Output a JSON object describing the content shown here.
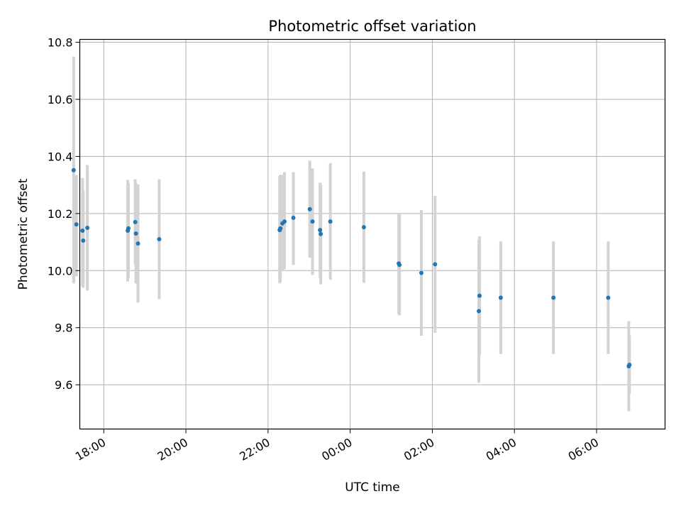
{
  "chart_data": {
    "type": "scatter",
    "title": "Photometric offset variation",
    "xlabel": "UTC time",
    "ylabel": "Photometric offset",
    "x_axis": "time (UTC, hours from 00:00; negative = previous evening)",
    "xlim": [
      "17:25",
      "07:40"
    ],
    "ylim": [
      9.445,
      10.81
    ],
    "x_ticks": [
      "18:00",
      "20:00",
      "22:00",
      "00:00",
      "02:00",
      "04:00",
      "06:00"
    ],
    "y_ticks": [
      "9.6",
      "9.8",
      "10.0",
      "10.2",
      "10.4",
      "10.6",
      "10.8"
    ],
    "grid": true,
    "colors": {
      "point": "#1f77b4",
      "errorbar": "#d3d3d3",
      "grid": "#b0b0b0"
    },
    "points": [
      {
        "t": "17:16",
        "y": 10.352,
        "lo": 9.955,
        "hi": 10.75
      },
      {
        "t": "17:20",
        "y": 10.162,
        "lo": 9.98,
        "hi": 10.335
      },
      {
        "t": "17:29",
        "y": 10.14,
        "lo": 9.945,
        "hi": 10.325
      },
      {
        "t": "17:30",
        "y": 10.105,
        "lo": 9.94,
        "hi": 10.28
      },
      {
        "t": "17:36",
        "y": 10.15,
        "lo": 9.93,
        "hi": 10.37
      },
      {
        "t": "18:35",
        "y": 10.14,
        "lo": 9.962,
        "hi": 10.318
      },
      {
        "t": "18:36",
        "y": 10.148,
        "lo": 9.975,
        "hi": 10.305
      },
      {
        "t": "18:46",
        "y": 10.17,
        "lo": 10.02,
        "hi": 10.32
      },
      {
        "t": "18:47",
        "y": 10.13,
        "lo": 9.955,
        "hi": 10.305
      },
      {
        "t": "18:50",
        "y": 10.095,
        "lo": 9.888,
        "hi": 10.302
      },
      {
        "t": "19:21",
        "y": 10.11,
        "lo": 9.9,
        "hi": 10.32
      },
      {
        "t": "22:17",
        "y": 10.142,
        "lo": 9.955,
        "hi": 10.33
      },
      {
        "t": "22:18",
        "y": 10.148,
        "lo": 9.96,
        "hi": 10.335
      },
      {
        "t": "22:21",
        "y": 10.165,
        "lo": 10.0,
        "hi": 10.335
      },
      {
        "t": "22:24",
        "y": 10.172,
        "lo": 10.005,
        "hi": 10.345
      },
      {
        "t": "22:37",
        "y": 10.185,
        "lo": 10.02,
        "hi": 10.345
      },
      {
        "t": "23:01",
        "y": 10.215,
        "lo": 10.045,
        "hi": 10.385
      },
      {
        "t": "23:05",
        "y": 10.172,
        "lo": 9.985,
        "hi": 10.358
      },
      {
        "t": "23:16",
        "y": 10.142,
        "lo": 9.975,
        "hi": 10.308
      },
      {
        "t": "23:17",
        "y": 10.128,
        "lo": 9.952,
        "hi": 10.302
      },
      {
        "t": "23:31",
        "y": 10.172,
        "lo": 9.968,
        "hi": 10.376
      },
      {
        "t": "00:20",
        "y": 10.152,
        "lo": 9.957,
        "hi": 10.347
      },
      {
        "t": "01:11",
        "y": 10.025,
        "lo": 9.848,
        "hi": 10.2
      },
      {
        "t": "01:12",
        "y": 10.02,
        "lo": 9.843,
        "hi": 10.197
      },
      {
        "t": "01:44",
        "y": 9.992,
        "lo": 9.772,
        "hi": 10.212
      },
      {
        "t": "02:04",
        "y": 10.022,
        "lo": 9.782,
        "hi": 10.262
      },
      {
        "t": "03:08",
        "y": 9.858,
        "lo": 9.607,
        "hi": 10.108
      },
      {
        "t": "03:09",
        "y": 9.912,
        "lo": 9.705,
        "hi": 10.12
      },
      {
        "t": "03:40",
        "y": 9.905,
        "lo": 9.708,
        "hi": 10.102
      },
      {
        "t": "04:57",
        "y": 9.905,
        "lo": 9.708,
        "hi": 10.102
      },
      {
        "t": "06:17",
        "y": 9.905,
        "lo": 9.708,
        "hi": 10.102
      },
      {
        "t": "06:47",
        "y": 9.665,
        "lo": 9.507,
        "hi": 9.823
      },
      {
        "t": "06:48",
        "y": 9.67,
        "lo": 9.568,
        "hi": 9.773
      }
    ]
  }
}
